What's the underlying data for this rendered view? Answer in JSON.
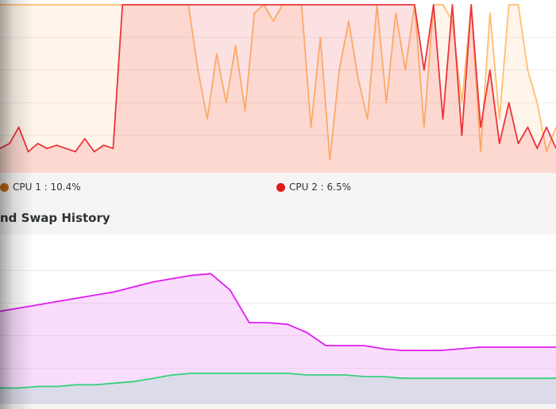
{
  "cpu_history": {
    "legend": [
      {
        "label": "CPU 1 : 10.4%",
        "color": "#c76b16"
      },
      {
        "label": "CPU 2 : 6.5%",
        "color": "#e01b1b"
      }
    ]
  },
  "memory_history": {
    "title": "nd Swap History"
  },
  "chart_data": [
    {
      "type": "area",
      "title": "",
      "xlabel": "",
      "ylabel": "",
      "ylim": [
        0,
        100
      ],
      "grid": true,
      "legend": "bottom",
      "x": [
        0,
        1,
        2,
        3,
        4,
        5,
        6,
        7,
        8,
        9,
        10,
        11,
        12,
        13,
        14,
        15,
        16,
        17,
        18,
        19,
        20,
        21,
        22,
        23,
        24,
        25,
        26,
        27,
        28,
        29,
        30,
        31,
        32,
        33,
        34,
        35,
        36,
        37,
        38,
        39,
        40,
        41,
        42,
        43,
        44,
        45,
        46,
        47,
        48,
        49,
        50,
        51,
        52,
        53,
        54,
        55,
        56,
        57,
        58,
        59
      ],
      "series": [
        {
          "name": "CPU 1 : 10.4%",
          "color": "#ffbe6f",
          "values": [
            100,
            100,
            100,
            100,
            100,
            100,
            100,
            100,
            100,
            100,
            100,
            100,
            100,
            100,
            100,
            100,
            100,
            100,
            100,
            100,
            100,
            60,
            30,
            70,
            40,
            75,
            35,
            95,
            100,
            90,
            100,
            100,
            100,
            25,
            80,
            5,
            60,
            90,
            55,
            30,
            100,
            40,
            95,
            60,
            100,
            25,
            100,
            100,
            90,
            40,
            100,
            10,
            95,
            30,
            100,
            100,
            60,
            40,
            10,
            25
          ]
        },
        {
          "name": "CPU 2 : 6.5%",
          "color": "#ed333b",
          "values": [
            12,
            15,
            25,
            10,
            15,
            12,
            14,
            12,
            10,
            18,
            10,
            14,
            12,
            100,
            100,
            100,
            100,
            100,
            100,
            100,
            100,
            100,
            100,
            100,
            100,
            100,
            100,
            100,
            100,
            100,
            100,
            100,
            100,
            100,
            100,
            100,
            100,
            100,
            100,
            100,
            100,
            100,
            100,
            100,
            100,
            60,
            100,
            30,
            100,
            20,
            100,
            25,
            60,
            15,
            40,
            15,
            25,
            12,
            25,
            12
          ]
        }
      ]
    },
    {
      "type": "area",
      "title": "",
      "xlabel": "",
      "ylabel": "",
      "ylim": [
        0,
        100
      ],
      "grid": true,
      "x": [
        0,
        1,
        2,
        3,
        4,
        5,
        6,
        7,
        8,
        9,
        10,
        11,
        12,
        13,
        14,
        15,
        16,
        17,
        18,
        19,
        20,
        21,
        22,
        23,
        24,
        25,
        26,
        27,
        28,
        29
      ],
      "series": [
        {
          "name": "",
          "color": "#e01bf0",
          "values": [
            55,
            57,
            59,
            61,
            63,
            65,
            67,
            70,
            73,
            75,
            77,
            78,
            68,
            48,
            48,
            47,
            42,
            34,
            34,
            34,
            32,
            31,
            31,
            31,
            32,
            33,
            33,
            33,
            33,
            33
          ]
        },
        {
          "name": "",
          "color": "#33d17a",
          "values": [
            8,
            8,
            9,
            9,
            10,
            10,
            11,
            12,
            14,
            16,
            17,
            17,
            17,
            17,
            17,
            17,
            16,
            16,
            16,
            15,
            15,
            14,
            14,
            14,
            14,
            14,
            14,
            14,
            14,
            14
          ]
        }
      ]
    }
  ]
}
